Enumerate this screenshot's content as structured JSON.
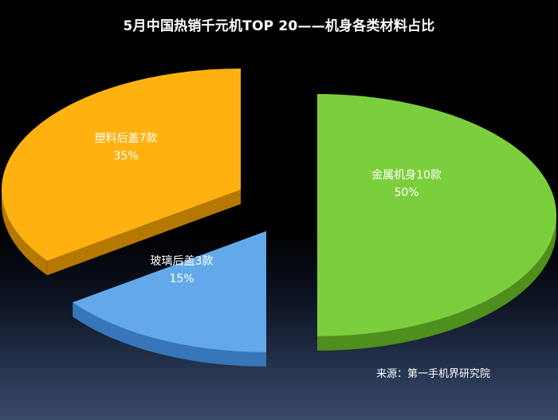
{
  "chart_data": {
    "type": "pie",
    "title": "5月中国热销千元机TOP 20——机身各类材料占比",
    "slices": [
      {
        "name": "金属机身",
        "count": 10,
        "count_label": "金属机身10款",
        "percent": 50,
        "percent_label": "50%",
        "color": "#7ccf3c",
        "side_color": "#4f8f1d"
      },
      {
        "name": "玻璃后盖",
        "count": 3,
        "count_label": "玻璃后盖3款",
        "percent": 15,
        "percent_label": "15%",
        "color": "#63a9ea",
        "side_color": "#3776b8"
      },
      {
        "name": "塑料后盖",
        "count": 7,
        "count_label": "塑料后盖7款",
        "percent": 35,
        "percent_label": "35%",
        "color": "#ffb20f",
        "side_color": "#b57800"
      }
    ],
    "exploded": true,
    "three_d": true,
    "legend": "none",
    "source": "来源：第一手机界研究院"
  }
}
